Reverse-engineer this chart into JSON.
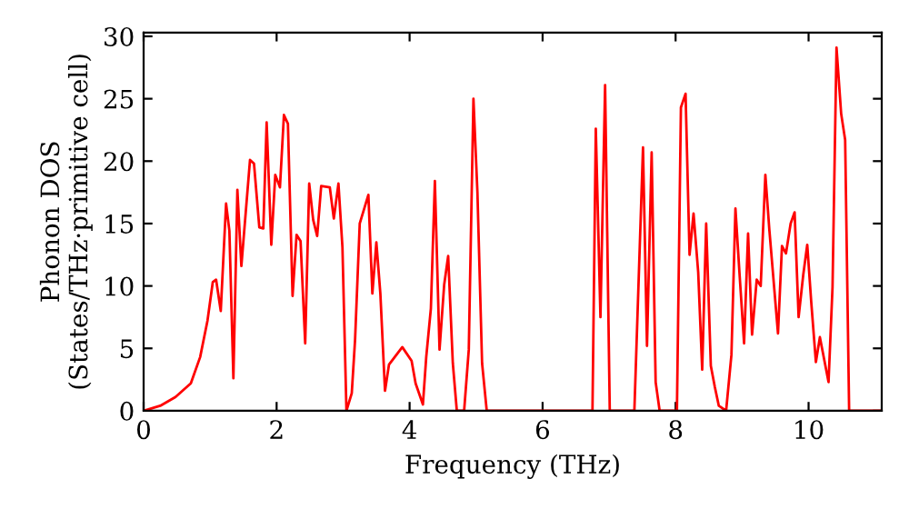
{
  "chart_data": {
    "type": "line",
    "xlabel": "Frequency (THz)",
    "ylabel": "Phonon DOS\n(States/THz·primitive cell)",
    "xlim": [
      0,
      11.1
    ],
    "ylim": [
      0,
      30.3
    ],
    "xticks": [
      0,
      2,
      4,
      6,
      8,
      10
    ],
    "yticks": [
      0,
      5,
      10,
      15,
      20,
      25,
      30
    ],
    "grid": false,
    "legend": false,
    "marker": "none",
    "line_style": "solid",
    "series": [
      {
        "color": "#ff0000",
        "x": [
          0,
          0.25,
          0.48,
          0.71,
          0.85,
          0.96,
          1.04,
          1.09,
          1.16,
          1.24,
          1.29,
          1.35,
          1.41,
          1.47,
          1.6,
          1.66,
          1.74,
          1.8,
          1.85,
          1.92,
          1.98,
          2.05,
          2.11,
          2.17,
          2.24,
          2.3,
          2.36,
          2.43,
          2.49,
          2.55,
          2.61,
          2.67,
          2.8,
          2.86,
          2.93,
          2.99,
          3.05,
          3.13,
          3.18,
          3.25,
          3.38,
          3.44,
          3.5,
          3.56,
          3.63,
          3.69,
          3.89,
          4.03,
          4.09,
          4.2,
          4.25,
          4.32,
          4.38,
          4.45,
          4.52,
          4.58,
          4.65,
          4.71,
          4.82,
          4.89,
          4.96,
          5.02,
          5.09,
          5.16,
          6.75,
          6.8,
          6.87,
          6.94,
          7.01,
          7.38,
          7.51,
          7.57,
          7.64,
          7.7,
          7.76,
          8.02,
          8.08,
          8.15,
          8.21,
          8.27,
          8.34,
          8.4,
          8.46,
          8.53,
          8.59,
          8.65,
          8.76,
          8.84,
          8.9,
          8.96,
          9.03,
          9.09,
          9.15,
          9.22,
          9.28,
          9.35,
          9.41,
          9.54,
          9.6,
          9.66,
          9.73,
          9.79,
          9.85,
          9.92,
          9.98,
          10.04,
          10.11,
          10.17,
          10.3,
          10.36,
          10.42,
          10.49,
          10.55,
          10.61,
          11.08
        ],
        "values": [
          0,
          0.4,
          1.1,
          2.2,
          4.3,
          7.2,
          10.3,
          10.5,
          8.0,
          16.6,
          14.4,
          2.6,
          17.7,
          11.6,
          20.1,
          19.8,
          14.7,
          14.6,
          23.1,
          13.3,
          18.9,
          17.9,
          23.7,
          23.0,
          9.2,
          14.1,
          13.6,
          5.4,
          18.2,
          15.3,
          14.0,
          18.0,
          17.9,
          15.4,
          18.2,
          13.1,
          0,
          1.4,
          5.7,
          15.0,
          17.3,
          9.4,
          13.5,
          9.4,
          1.6,
          3.7,
          5.1,
          4.0,
          2.2,
          0.5,
          4.3,
          8.2,
          18.4,
          4.9,
          10.1,
          12.4,
          3.8,
          0,
          0,
          4.9,
          25.0,
          17.5,
          3.8,
          0,
          0,
          22.6,
          7.5,
          26.1,
          0,
          0,
          21.1,
          5.2,
          20.7,
          2.3,
          0,
          0,
          24.3,
          25.4,
          12.5,
          15.8,
          11.1,
          3.3,
          15.0,
          3.6,
          1.9,
          0.4,
          0,
          4.5,
          16.2,
          11.1,
          5.4,
          14.2,
          6.1,
          10.5,
          10.0,
          18.9,
          14.5,
          6.2,
          13.2,
          12.6,
          15.0,
          15.9,
          7.5,
          10.9,
          13.3,
          8.7,
          3.9,
          5.9,
          2.3,
          9.9,
          29.1,
          23.8,
          21.7,
          0,
          0
        ]
      }
    ]
  }
}
